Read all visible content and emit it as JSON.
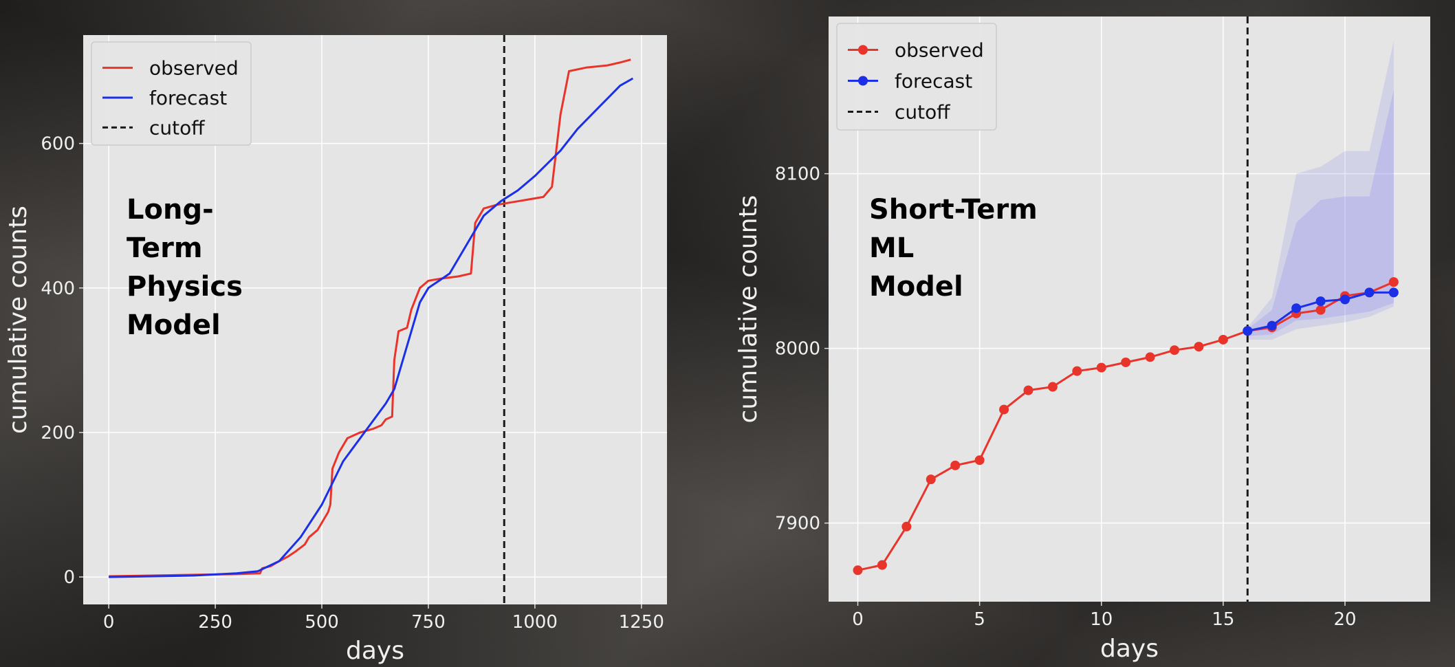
{
  "chart_data": [
    {
      "type": "line",
      "xlabel": "days",
      "ylabel": "cumulative counts",
      "xlim": [
        -60,
        1310
      ],
      "ylim": [
        -38,
        750
      ],
      "xticks": [
        0,
        250,
        500,
        750,
        1000,
        1250
      ],
      "yticks": [
        0,
        200,
        400,
        600
      ],
      "grid": true,
      "legend": "top-left",
      "annotation": "Long-\nTerm\nPhysics\nModel",
      "cutoff_x": 928,
      "cutoff_label": "cutoff",
      "series": [
        {
          "name": "observed",
          "color": "#e8342a",
          "points": [
            [
              0,
              1
            ],
            [
              100,
              2
            ],
            [
              200,
              3
            ],
            [
              300,
              4
            ],
            [
              355,
              5
            ],
            [
              360,
              12
            ],
            [
              380,
              15
            ],
            [
              400,
              22
            ],
            [
              420,
              28
            ],
            [
              440,
              36
            ],
            [
              460,
              45
            ],
            [
              470,
              55
            ],
            [
              490,
              65
            ],
            [
              505,
              80
            ],
            [
              515,
              90
            ],
            [
              520,
              100
            ],
            [
              525,
              150
            ],
            [
              540,
              172
            ],
            [
              560,
              192
            ],
            [
              590,
              200
            ],
            [
              620,
              205
            ],
            [
              640,
              210
            ],
            [
              650,
              218
            ],
            [
              665,
              222
            ],
            [
              670,
              300
            ],
            [
              680,
              340
            ],
            [
              700,
              345
            ],
            [
              710,
              370
            ],
            [
              730,
              400
            ],
            [
              750,
              410
            ],
            [
              780,
              413
            ],
            [
              820,
              416
            ],
            [
              850,
              420
            ],
            [
              860,
              490
            ],
            [
              880,
              510
            ],
            [
              910,
              515
            ],
            [
              930,
              517
            ],
            [
              960,
              520
            ],
            [
              1020,
              526
            ],
            [
              1040,
              540
            ],
            [
              1050,
              590
            ],
            [
              1060,
              640
            ],
            [
              1080,
              700
            ],
            [
              1120,
              705
            ],
            [
              1170,
              708
            ],
            [
              1200,
              712
            ],
            [
              1225,
              716
            ]
          ]
        },
        {
          "name": "forecast",
          "color": "#1b2fe6",
          "points": [
            [
              0,
              0
            ],
            [
              200,
              2
            ],
            [
              300,
              5
            ],
            [
              350,
              8
            ],
            [
              400,
              22
            ],
            [
              450,
              55
            ],
            [
              500,
              100
            ],
            [
              550,
              160
            ],
            [
              600,
              200
            ],
            [
              650,
              240
            ],
            [
              670,
              260
            ],
            [
              700,
              320
            ],
            [
              730,
              380
            ],
            [
              750,
              400
            ],
            [
              800,
              420
            ],
            [
              840,
              460
            ],
            [
              880,
              500
            ],
            [
              920,
              520
            ],
            [
              960,
              535
            ],
            [
              1000,
              555
            ],
            [
              1060,
              590
            ],
            [
              1100,
              620
            ],
            [
              1150,
              650
            ],
            [
              1200,
              680
            ],
            [
              1230,
              690
            ]
          ]
        }
      ]
    },
    {
      "type": "line",
      "xlabel": "days",
      "ylabel": "cumulative counts",
      "xlim": [
        -1.2,
        23.5
      ],
      "ylim": [
        7855,
        8190
      ],
      "xticks": [
        0,
        5,
        10,
        15,
        20
      ],
      "yticks": [
        7900,
        8000,
        8100
      ],
      "grid": true,
      "legend": "top-left",
      "annotation": "Short-Term\nML\nModel",
      "cutoff_x": 16,
      "cutoff_label": "cutoff",
      "series": [
        {
          "name": "observed",
          "color": "#e8342a",
          "markers": true,
          "x": [
            0,
            1,
            2,
            3,
            4,
            5,
            6,
            7,
            8,
            9,
            10,
            11,
            12,
            13,
            14,
            15,
            16,
            17,
            18,
            19,
            20,
            21,
            22
          ],
          "y": [
            7873,
            7876,
            7898,
            7925,
            7933,
            7936,
            7965,
            7976,
            7978,
            7987,
            7989,
            7992,
            7995,
            7999,
            8001,
            8005,
            8010,
            8012,
            8020,
            8022,
            8030,
            8032,
            8038
          ]
        },
        {
          "name": "forecast",
          "color": "#1b2fe6",
          "markers": true,
          "x": [
            16,
            17,
            18,
            19,
            20,
            21,
            22
          ],
          "y": [
            8010,
            8013,
            8023,
            8027,
            8028,
            8032,
            8032
          ]
        }
      ],
      "uncertainty": {
        "color": "#9a9aee",
        "x": [
          16,
          17,
          18,
          19,
          20,
          21,
          22
        ],
        "outer_low": [
          8005,
          8005,
          8011,
          8013,
          8015,
          8018,
          8024
        ],
        "outer_high": [
          8012,
          8029,
          8100,
          8104,
          8113,
          8113,
          8176
        ],
        "inner_low": [
          8007,
          8008,
          8016,
          8017,
          8019,
          8021,
          8026
        ],
        "inner_high": [
          8011,
          8022,
          8072,
          8085,
          8087,
          8087,
          8148
        ]
      }
    }
  ]
}
